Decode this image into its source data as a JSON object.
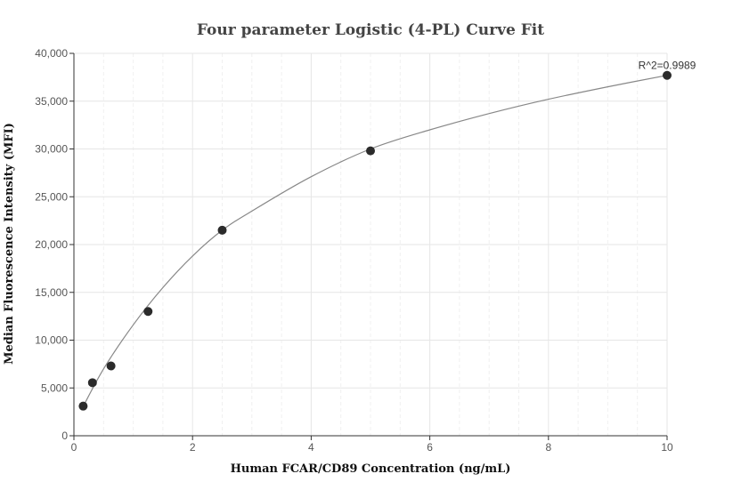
{
  "chart_data": {
    "type": "scatter",
    "title": "Four parameter Logistic (4-PL) Curve Fit",
    "xlabel": "Human FCAR/CD89 Concentration (ng/mL)",
    "ylabel": "Median Fluorescence Intensity (MFI)",
    "xlim": [
      0,
      10
    ],
    "ylim": [
      0,
      40000
    ],
    "x_ticks": [
      0,
      2,
      4,
      6,
      8,
      10
    ],
    "x_tick_labels": [
      "0",
      "2",
      "4",
      "6",
      "8",
      "10"
    ],
    "y_ticks": [
      0,
      5000,
      10000,
      15000,
      20000,
      25000,
      30000,
      35000,
      40000
    ],
    "y_tick_labels": [
      "0",
      "5,000",
      "10,000",
      "15,000",
      "20,000",
      "25,000",
      "30,000",
      "35,000",
      "40,000"
    ],
    "grid": true,
    "series": [
      {
        "points": [
          {
            "x": 0.156,
            "y": 3100
          },
          {
            "x": 0.3125,
            "y": 5550
          },
          {
            "x": 0.625,
            "y": 7300
          },
          {
            "x": 1.25,
            "y": 13000
          },
          {
            "x": 2.5,
            "y": 21500
          },
          {
            "x": 5,
            "y": 29800
          },
          {
            "x": 10,
            "y": 37700
          }
        ]
      }
    ],
    "fit_curve": {
      "model": "4PL",
      "x": [
        0.15,
        0.5,
        1,
        1.5,
        2,
        2.5,
        3,
        4,
        5,
        6,
        7,
        8,
        9,
        10
      ],
      "y": [
        3000,
        7000,
        11600,
        15500,
        18800,
        21500,
        23500,
        27100,
        30000,
        32000,
        33700,
        35200,
        36500,
        37700
      ]
    },
    "annotation": "R^2=0.9989",
    "colors": {
      "points": "#2b2b2b",
      "fit_line": "#888888",
      "grid": "#e6e6e6"
    }
  }
}
